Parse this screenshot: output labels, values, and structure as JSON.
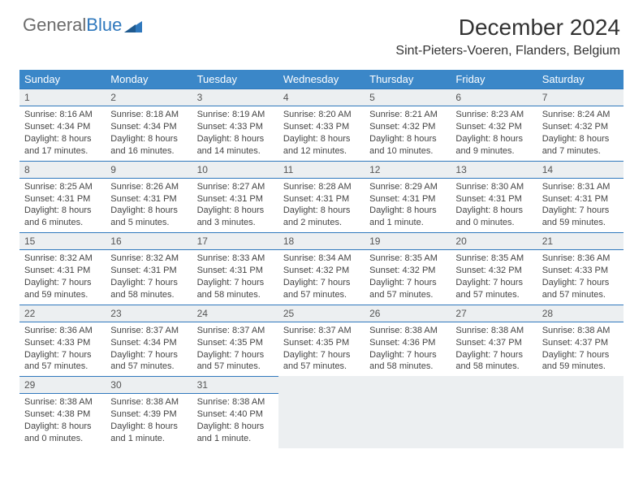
{
  "brand": {
    "part1": "General",
    "part2": "Blue"
  },
  "title": "December 2024",
  "location": "Sint-Pieters-Voeren, Flanders, Belgium",
  "colors": {
    "header_bg": "#3b87c8",
    "border": "#2f78bd",
    "day_row_bg": "#eceff1",
    "text": "#333333",
    "logo_gray": "#6b6b6b",
    "logo_blue": "#2f78bd",
    "white": "#ffffff"
  },
  "weekdays": [
    "Sunday",
    "Monday",
    "Tuesday",
    "Wednesday",
    "Thursday",
    "Friday",
    "Saturday"
  ],
  "weeks": [
    [
      {
        "n": "1",
        "sr": "Sunrise: 8:16 AM",
        "ss": "Sunset: 4:34 PM",
        "d1": "Daylight: 8 hours",
        "d2": "and 17 minutes."
      },
      {
        "n": "2",
        "sr": "Sunrise: 8:18 AM",
        "ss": "Sunset: 4:34 PM",
        "d1": "Daylight: 8 hours",
        "d2": "and 16 minutes."
      },
      {
        "n": "3",
        "sr": "Sunrise: 8:19 AM",
        "ss": "Sunset: 4:33 PM",
        "d1": "Daylight: 8 hours",
        "d2": "and 14 minutes."
      },
      {
        "n": "4",
        "sr": "Sunrise: 8:20 AM",
        "ss": "Sunset: 4:33 PM",
        "d1": "Daylight: 8 hours",
        "d2": "and 12 minutes."
      },
      {
        "n": "5",
        "sr": "Sunrise: 8:21 AM",
        "ss": "Sunset: 4:32 PM",
        "d1": "Daylight: 8 hours",
        "d2": "and 10 minutes."
      },
      {
        "n": "6",
        "sr": "Sunrise: 8:23 AM",
        "ss": "Sunset: 4:32 PM",
        "d1": "Daylight: 8 hours",
        "d2": "and 9 minutes."
      },
      {
        "n": "7",
        "sr": "Sunrise: 8:24 AM",
        "ss": "Sunset: 4:32 PM",
        "d1": "Daylight: 8 hours",
        "d2": "and 7 minutes."
      }
    ],
    [
      {
        "n": "8",
        "sr": "Sunrise: 8:25 AM",
        "ss": "Sunset: 4:31 PM",
        "d1": "Daylight: 8 hours",
        "d2": "and 6 minutes."
      },
      {
        "n": "9",
        "sr": "Sunrise: 8:26 AM",
        "ss": "Sunset: 4:31 PM",
        "d1": "Daylight: 8 hours",
        "d2": "and 5 minutes."
      },
      {
        "n": "10",
        "sr": "Sunrise: 8:27 AM",
        "ss": "Sunset: 4:31 PM",
        "d1": "Daylight: 8 hours",
        "d2": "and 3 minutes."
      },
      {
        "n": "11",
        "sr": "Sunrise: 8:28 AM",
        "ss": "Sunset: 4:31 PM",
        "d1": "Daylight: 8 hours",
        "d2": "and 2 minutes."
      },
      {
        "n": "12",
        "sr": "Sunrise: 8:29 AM",
        "ss": "Sunset: 4:31 PM",
        "d1": "Daylight: 8 hours",
        "d2": "and 1 minute."
      },
      {
        "n": "13",
        "sr": "Sunrise: 8:30 AM",
        "ss": "Sunset: 4:31 PM",
        "d1": "Daylight: 8 hours",
        "d2": "and 0 minutes."
      },
      {
        "n": "14",
        "sr": "Sunrise: 8:31 AM",
        "ss": "Sunset: 4:31 PM",
        "d1": "Daylight: 7 hours",
        "d2": "and 59 minutes."
      }
    ],
    [
      {
        "n": "15",
        "sr": "Sunrise: 8:32 AM",
        "ss": "Sunset: 4:31 PM",
        "d1": "Daylight: 7 hours",
        "d2": "and 59 minutes."
      },
      {
        "n": "16",
        "sr": "Sunrise: 8:32 AM",
        "ss": "Sunset: 4:31 PM",
        "d1": "Daylight: 7 hours",
        "d2": "and 58 minutes."
      },
      {
        "n": "17",
        "sr": "Sunrise: 8:33 AM",
        "ss": "Sunset: 4:31 PM",
        "d1": "Daylight: 7 hours",
        "d2": "and 58 minutes."
      },
      {
        "n": "18",
        "sr": "Sunrise: 8:34 AM",
        "ss": "Sunset: 4:32 PM",
        "d1": "Daylight: 7 hours",
        "d2": "and 57 minutes."
      },
      {
        "n": "19",
        "sr": "Sunrise: 8:35 AM",
        "ss": "Sunset: 4:32 PM",
        "d1": "Daylight: 7 hours",
        "d2": "and 57 minutes."
      },
      {
        "n": "20",
        "sr": "Sunrise: 8:35 AM",
        "ss": "Sunset: 4:32 PM",
        "d1": "Daylight: 7 hours",
        "d2": "and 57 minutes."
      },
      {
        "n": "21",
        "sr": "Sunrise: 8:36 AM",
        "ss": "Sunset: 4:33 PM",
        "d1": "Daylight: 7 hours",
        "d2": "and 57 minutes."
      }
    ],
    [
      {
        "n": "22",
        "sr": "Sunrise: 8:36 AM",
        "ss": "Sunset: 4:33 PM",
        "d1": "Daylight: 7 hours",
        "d2": "and 57 minutes."
      },
      {
        "n": "23",
        "sr": "Sunrise: 8:37 AM",
        "ss": "Sunset: 4:34 PM",
        "d1": "Daylight: 7 hours",
        "d2": "and 57 minutes."
      },
      {
        "n": "24",
        "sr": "Sunrise: 8:37 AM",
        "ss": "Sunset: 4:35 PM",
        "d1": "Daylight: 7 hours",
        "d2": "and 57 minutes."
      },
      {
        "n": "25",
        "sr": "Sunrise: 8:37 AM",
        "ss": "Sunset: 4:35 PM",
        "d1": "Daylight: 7 hours",
        "d2": "and 57 minutes."
      },
      {
        "n": "26",
        "sr": "Sunrise: 8:38 AM",
        "ss": "Sunset: 4:36 PM",
        "d1": "Daylight: 7 hours",
        "d2": "and 58 minutes."
      },
      {
        "n": "27",
        "sr": "Sunrise: 8:38 AM",
        "ss": "Sunset: 4:37 PM",
        "d1": "Daylight: 7 hours",
        "d2": "and 58 minutes."
      },
      {
        "n": "28",
        "sr": "Sunrise: 8:38 AM",
        "ss": "Sunset: 4:37 PM",
        "d1": "Daylight: 7 hours",
        "d2": "and 59 minutes."
      }
    ],
    [
      {
        "n": "29",
        "sr": "Sunrise: 8:38 AM",
        "ss": "Sunset: 4:38 PM",
        "d1": "Daylight: 8 hours",
        "d2": "and 0 minutes."
      },
      {
        "n": "30",
        "sr": "Sunrise: 8:38 AM",
        "ss": "Sunset: 4:39 PM",
        "d1": "Daylight: 8 hours",
        "d2": "and 1 minute."
      },
      {
        "n": "31",
        "sr": "Sunrise: 8:38 AM",
        "ss": "Sunset: 4:40 PM",
        "d1": "Daylight: 8 hours",
        "d2": "and 1 minute."
      },
      null,
      null,
      null,
      null
    ]
  ]
}
